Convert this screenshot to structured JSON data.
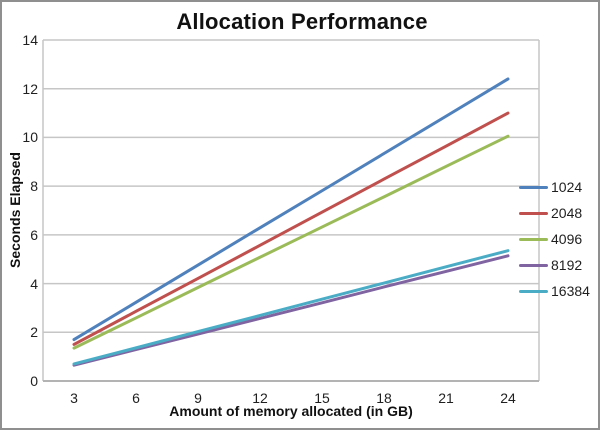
{
  "chart_data": {
    "type": "line",
    "title": "Allocation Performance",
    "xlabel": "Amount of memory allocated (in GB)",
    "ylabel": "Seconds Elapsed",
    "categories": [
      3,
      6,
      9,
      12,
      15,
      18,
      21,
      24
    ],
    "x_tick_labels": [
      "3",
      "6",
      "9",
      "12",
      "15",
      "18",
      "21",
      "24"
    ],
    "y_tick_labels": [
      "0",
      "2",
      "4",
      "6",
      "8",
      "10",
      "12",
      "14"
    ],
    "ylim": [
      0,
      14
    ],
    "y_tick_step": 2,
    "grid": "horizontal",
    "legend_position": "right",
    "series": [
      {
        "name": "1024",
        "color": "#4f81bd",
        "values": [
          1.7,
          3.23,
          4.76,
          6.29,
          7.81,
          9.34,
          10.87,
          12.4
        ]
      },
      {
        "name": "2048",
        "color": "#c0504d",
        "values": [
          1.5,
          2.86,
          4.21,
          5.57,
          6.93,
          8.29,
          9.64,
          11.0
        ]
      },
      {
        "name": "4096",
        "color": "#9bbb59",
        "values": [
          1.35,
          2.59,
          3.84,
          5.08,
          6.32,
          7.56,
          8.81,
          10.05
        ]
      },
      {
        "name": "8192",
        "color": "#8064a2",
        "values": [
          0.65,
          1.29,
          1.93,
          2.57,
          3.21,
          3.86,
          4.5,
          5.14
        ]
      },
      {
        "name": "16384",
        "color": "#4bacc6",
        "values": [
          0.7,
          1.36,
          2.03,
          2.69,
          3.36,
          4.02,
          4.69,
          5.35
        ]
      }
    ]
  },
  "colors": {
    "background": "#ffffff",
    "outer_border": "#8f8f8f",
    "gridline": "#c6c6c6",
    "axis_line": "#b3b3b3",
    "text": "#1f1f1f"
  }
}
